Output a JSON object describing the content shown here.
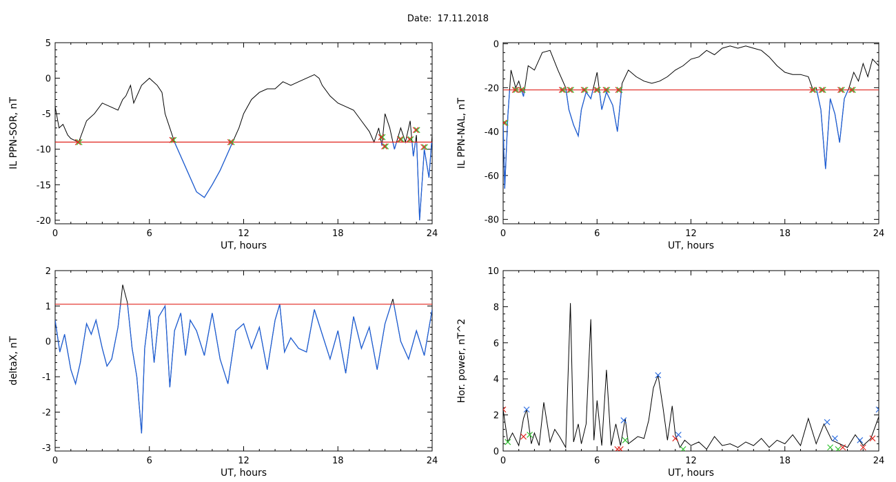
{
  "figure": {
    "date_label": "Date:  17.11.2018"
  },
  "colors": {
    "data_line": "#000000",
    "below_threshold": "#1f5fd6",
    "threshold": "#e0231c",
    "marker_red": "#e0231c",
    "marker_green": "#2fc22f",
    "marker_blue": "#2f6fe0"
  },
  "chart_data": [
    {
      "type": "line",
      "id": "sor",
      "xlabel": "UT, hours",
      "ylabel": "IL PPN-SOR, nT",
      "xlim": [
        0,
        24
      ],
      "ylim": [
        -20.5,
        5
      ],
      "xticks": [
        0,
        6,
        12,
        18,
        24
      ],
      "yticks": [
        -20,
        -15,
        -10,
        -5,
        0,
        5
      ],
      "threshold": -9.0,
      "series": [
        {
          "x": [
            0,
            0.25,
            0.5,
            0.8,
            1.0,
            1.5,
            2.0,
            2.5,
            3.0,
            3.5,
            4.0,
            4.3,
            4.5,
            4.8,
            5.0,
            5.5,
            6.0,
            6.5,
            6.8,
            7.0,
            7.3,
            7.6,
            8.0,
            8.5,
            9.0,
            9.5,
            10.0,
            10.5,
            11.0,
            11.3,
            11.7,
            12.0,
            12.5,
            13.0,
            13.5,
            14.0,
            14.5,
            15.0,
            15.5,
            16.0,
            16.5,
            16.8,
            17.0,
            17.5,
            18.0,
            18.5,
            19.0,
            19.5,
            20.0,
            20.3,
            20.6,
            20.8,
            21.0,
            21.3,
            21.6,
            22.0,
            22.3,
            22.6,
            22.8,
            23.0,
            23.2,
            23.5,
            23.8,
            24.0
          ],
          "y": [
            -4,
            -7,
            -6.5,
            -8,
            -8.5,
            -9.0,
            -6,
            -5,
            -3.5,
            -4,
            -4.5,
            -3,
            -2.5,
            -1,
            -3.5,
            -1,
            0,
            -1,
            -2,
            -5,
            -7,
            -9.0,
            -11,
            -13.5,
            -16,
            -16.8,
            -15,
            -13,
            -10.5,
            -9.0,
            -7,
            -5,
            -3,
            -2,
            -1.5,
            -1.5,
            -0.5,
            -1,
            -0.5,
            0,
            0.5,
            0,
            -1,
            -2.5,
            -3.5,
            -4,
            -4.5,
            -6,
            -7.5,
            -9,
            -7,
            -9.5,
            -5,
            -7,
            -10,
            -7,
            -9,
            -6,
            -11,
            -8,
            -20,
            -10,
            -14,
            -8
          ]
        }
      ],
      "markers": [
        {
          "x": 1.5,
          "y": -9.0
        },
        {
          "x": 7.5,
          "y": -8.7
        },
        {
          "x": 11.2,
          "y": -9.0
        },
        {
          "x": 20.8,
          "y": -8.3
        },
        {
          "x": 21.0,
          "y": -9.6
        },
        {
          "x": 22.0,
          "y": -8.6
        },
        {
          "x": 22.6,
          "y": -8.6
        },
        {
          "x": 23.0,
          "y": -7.3
        },
        {
          "x": 23.5,
          "y": -9.7
        }
      ]
    },
    {
      "type": "line",
      "id": "nal",
      "xlabel": "UT, hours",
      "ylabel": "IL PPN-NAL, nT",
      "xlim": [
        0,
        24
      ],
      "ylim": [
        -82,
        0.5
      ],
      "xticks": [
        0,
        6,
        12,
        18,
        24
      ],
      "yticks": [
        -80,
        -60,
        -40,
        -20,
        0
      ],
      "threshold": -21.0,
      "series": [
        {
          "x": [
            0,
            0.1,
            0.3,
            0.5,
            0.8,
            1.0,
            1.3,
            1.6,
            2.0,
            2.5,
            3.0,
            3.5,
            4.0,
            4.2,
            4.5,
            4.8,
            5.0,
            5.3,
            5.6,
            6.0,
            6.3,
            6.6,
            7.0,
            7.3,
            7.6,
            8.0,
            8.5,
            9.0,
            9.5,
            10.0,
            10.5,
            11.0,
            11.5,
            12.0,
            12.5,
            13.0,
            13.5,
            14.0,
            14.5,
            15.0,
            15.5,
            16.0,
            16.5,
            17.0,
            17.5,
            18.0,
            18.5,
            19.0,
            19.5,
            19.8,
            20.0,
            20.3,
            20.6,
            20.9,
            21.2,
            21.5,
            21.8,
            22.1,
            22.4,
            22.7,
            23.0,
            23.3,
            23.6,
            24.0
          ],
          "y": [
            -36,
            -66,
            -33,
            -12,
            -20,
            -17,
            -24,
            -10,
            -12,
            -4,
            -3,
            -12,
            -20,
            -30,
            -37,
            -42,
            -30,
            -22,
            -25,
            -13,
            -30,
            -22,
            -28,
            -40,
            -18,
            -12,
            -15,
            -17,
            -18,
            -17,
            -15,
            -12,
            -10,
            -7,
            -6,
            -3,
            -5,
            -2,
            -1,
            -2,
            -1,
            -2,
            -3,
            -6,
            -10,
            -13,
            -14,
            -14,
            -15,
            -21,
            -20,
            -30,
            -57,
            -25,
            -32,
            -45,
            -25,
            -20,
            -13,
            -17,
            -9,
            -15,
            -7,
            -10
          ]
        }
      ],
      "markers": [
        {
          "x": 0.1,
          "y": -36
        },
        {
          "x": 0.8,
          "y": -21
        },
        {
          "x": 1.2,
          "y": -21
        },
        {
          "x": 3.8,
          "y": -21
        },
        {
          "x": 4.3,
          "y": -21
        },
        {
          "x": 5.2,
          "y": -21
        },
        {
          "x": 6.0,
          "y": -21
        },
        {
          "x": 6.6,
          "y": -21
        },
        {
          "x": 7.4,
          "y": -21
        },
        {
          "x": 19.8,
          "y": -21
        },
        {
          "x": 20.4,
          "y": -21
        },
        {
          "x": 21.6,
          "y": -21
        },
        {
          "x": 22.3,
          "y": -21
        }
      ]
    },
    {
      "type": "line",
      "id": "deltax",
      "xlabel": "UT, hours",
      "ylabel": "deltaX, nT",
      "xlim": [
        0,
        24
      ],
      "ylim": [
        -3.1,
        2
      ],
      "xticks": [
        0,
        6,
        12,
        18,
        24
      ],
      "yticks": [
        -3,
        -2,
        -1,
        0,
        1,
        2
      ],
      "threshold": 1.05,
      "series": [
        {
          "x": [
            0,
            0.3,
            0.6,
            1.0,
            1.3,
            1.6,
            2.0,
            2.3,
            2.6,
            3.0,
            3.3,
            3.6,
            4.0,
            4.3,
            4.6,
            4.9,
            5.2,
            5.5,
            5.7,
            6.0,
            6.3,
            6.6,
            7.0,
            7.3,
            7.6,
            8.0,
            8.3,
            8.6,
            9.0,
            9.5,
            10.0,
            10.5,
            11.0,
            11.5,
            12.0,
            12.5,
            13.0,
            13.5,
            14.0,
            14.3,
            14.6,
            15.0,
            15.5,
            16.0,
            16.5,
            17.0,
            17.5,
            18.0,
            18.5,
            19.0,
            19.5,
            20.0,
            20.5,
            21.0,
            21.5,
            22.0,
            22.5,
            23.0,
            23.5,
            24.0
          ],
          "y": [
            0.6,
            -0.3,
            0.2,
            -0.8,
            -1.2,
            -0.6,
            0.5,
            0.2,
            0.6,
            -0.2,
            -0.7,
            -0.5,
            0.4,
            1.6,
            1.1,
            -0.2,
            -1.0,
            -2.6,
            -0.2,
            0.9,
            -0.6,
            0.7,
            1.0,
            -1.3,
            0.3,
            0.8,
            -0.4,
            0.6,
            0.3,
            -0.4,
            0.8,
            -0.5,
            -1.2,
            0.3,
            0.5,
            -0.2,
            0.4,
            -0.8,
            0.6,
            1.05,
            -0.3,
            0.1,
            -0.2,
            -0.3,
            0.9,
            0.2,
            -0.5,
            0.3,
            -0.9,
            0.7,
            -0.2,
            0.4,
            -0.8,
            0.5,
            1.2,
            0.0,
            -0.5,
            0.3,
            -0.4,
            0.9
          ]
        }
      ],
      "markers": []
    },
    {
      "type": "line",
      "id": "power",
      "xlabel": "UT, hours",
      "ylabel": "Hor. power, nT^2",
      "xlim": [
        0,
        24
      ],
      "ylim": [
        0,
        10
      ],
      "xticks": [
        0,
        6,
        12,
        18,
        24
      ],
      "yticks": [
        0,
        2,
        4,
        6,
        8,
        10
      ],
      "threshold": null,
      "series": [
        {
          "x": [
            0,
            0.3,
            0.6,
            1.0,
            1.3,
            1.5,
            1.8,
            2.0,
            2.3,
            2.6,
            3.0,
            3.3,
            3.6,
            4.0,
            4.3,
            4.5,
            4.8,
            5.0,
            5.3,
            5.6,
            5.8,
            6.0,
            6.3,
            6.6,
            6.9,
            7.2,
            7.5,
            7.8,
            8.0,
            8.3,
            8.6,
            9.0,
            9.3,
            9.6,
            9.9,
            10.2,
            10.5,
            10.8,
            11.0,
            11.3,
            11.6,
            12.0,
            12.5,
            13.0,
            13.5,
            14.0,
            14.5,
            15.0,
            15.5,
            16.0,
            16.5,
            17.0,
            17.5,
            18.0,
            18.5,
            19.0,
            19.5,
            20.0,
            20.5,
            21.0,
            21.5,
            22.0,
            22.5,
            23.0,
            23.5,
            24.0
          ],
          "y": [
            2.3,
            0.5,
            1.0,
            0.3,
            1.8,
            2.3,
            0.4,
            1.0,
            0.3,
            2.7,
            0.5,
            1.2,
            0.8,
            0.2,
            8.2,
            0.5,
            1.5,
            0.4,
            1.5,
            7.3,
            0.6,
            2.8,
            0.3,
            4.5,
            0.3,
            1.5,
            0.3,
            1.8,
            0.4,
            0.6,
            0.8,
            0.7,
            1.7,
            3.5,
            4.2,
            2.5,
            0.6,
            2.5,
            0.9,
            0.2,
            0.6,
            0.3,
            0.5,
            0.1,
            0.8,
            0.3,
            0.4,
            0.2,
            0.5,
            0.3,
            0.7,
            0.2,
            0.6,
            0.4,
            0.9,
            0.3,
            1.8,
            0.4,
            1.5,
            0.6,
            0.4,
            0.2,
            0.9,
            0.3,
            0.7,
            1.9
          ]
        }
      ],
      "markers": [
        {
          "x": 0.0,
          "y": 2.3,
          "c": "red"
        },
        {
          "x": 0.3,
          "y": 0.5,
          "c": "green"
        },
        {
          "x": 1.3,
          "y": 0.8,
          "c": "red"
        },
        {
          "x": 1.5,
          "y": 2.3,
          "c": "blue"
        },
        {
          "x": 1.7,
          "y": 0.9,
          "c": "green"
        },
        {
          "x": 7.3,
          "y": 0.1,
          "c": "red"
        },
        {
          "x": 7.5,
          "y": 0.1,
          "c": "red"
        },
        {
          "x": 7.7,
          "y": 1.7,
          "c": "blue"
        },
        {
          "x": 7.8,
          "y": 0.6,
          "c": "green"
        },
        {
          "x": 9.9,
          "y": 4.2,
          "c": "blue"
        },
        {
          "x": 11.0,
          "y": 0.7,
          "c": "red"
        },
        {
          "x": 11.2,
          "y": 0.9,
          "c": "blue"
        },
        {
          "x": 11.5,
          "y": 0.1,
          "c": "green"
        },
        {
          "x": 20.7,
          "y": 1.6,
          "c": "blue"
        },
        {
          "x": 20.9,
          "y": 0.2,
          "c": "green"
        },
        {
          "x": 21.2,
          "y": 0.7,
          "c": "blue"
        },
        {
          "x": 21.4,
          "y": 0.1,
          "c": "green"
        },
        {
          "x": 21.7,
          "y": 0.2,
          "c": "red"
        },
        {
          "x": 22.8,
          "y": 0.6,
          "c": "blue"
        },
        {
          "x": 23.0,
          "y": 0.2,
          "c": "red"
        },
        {
          "x": 23.6,
          "y": 0.7,
          "c": "red"
        },
        {
          "x": 24.0,
          "y": 2.3,
          "c": "blue"
        }
      ]
    }
  ]
}
